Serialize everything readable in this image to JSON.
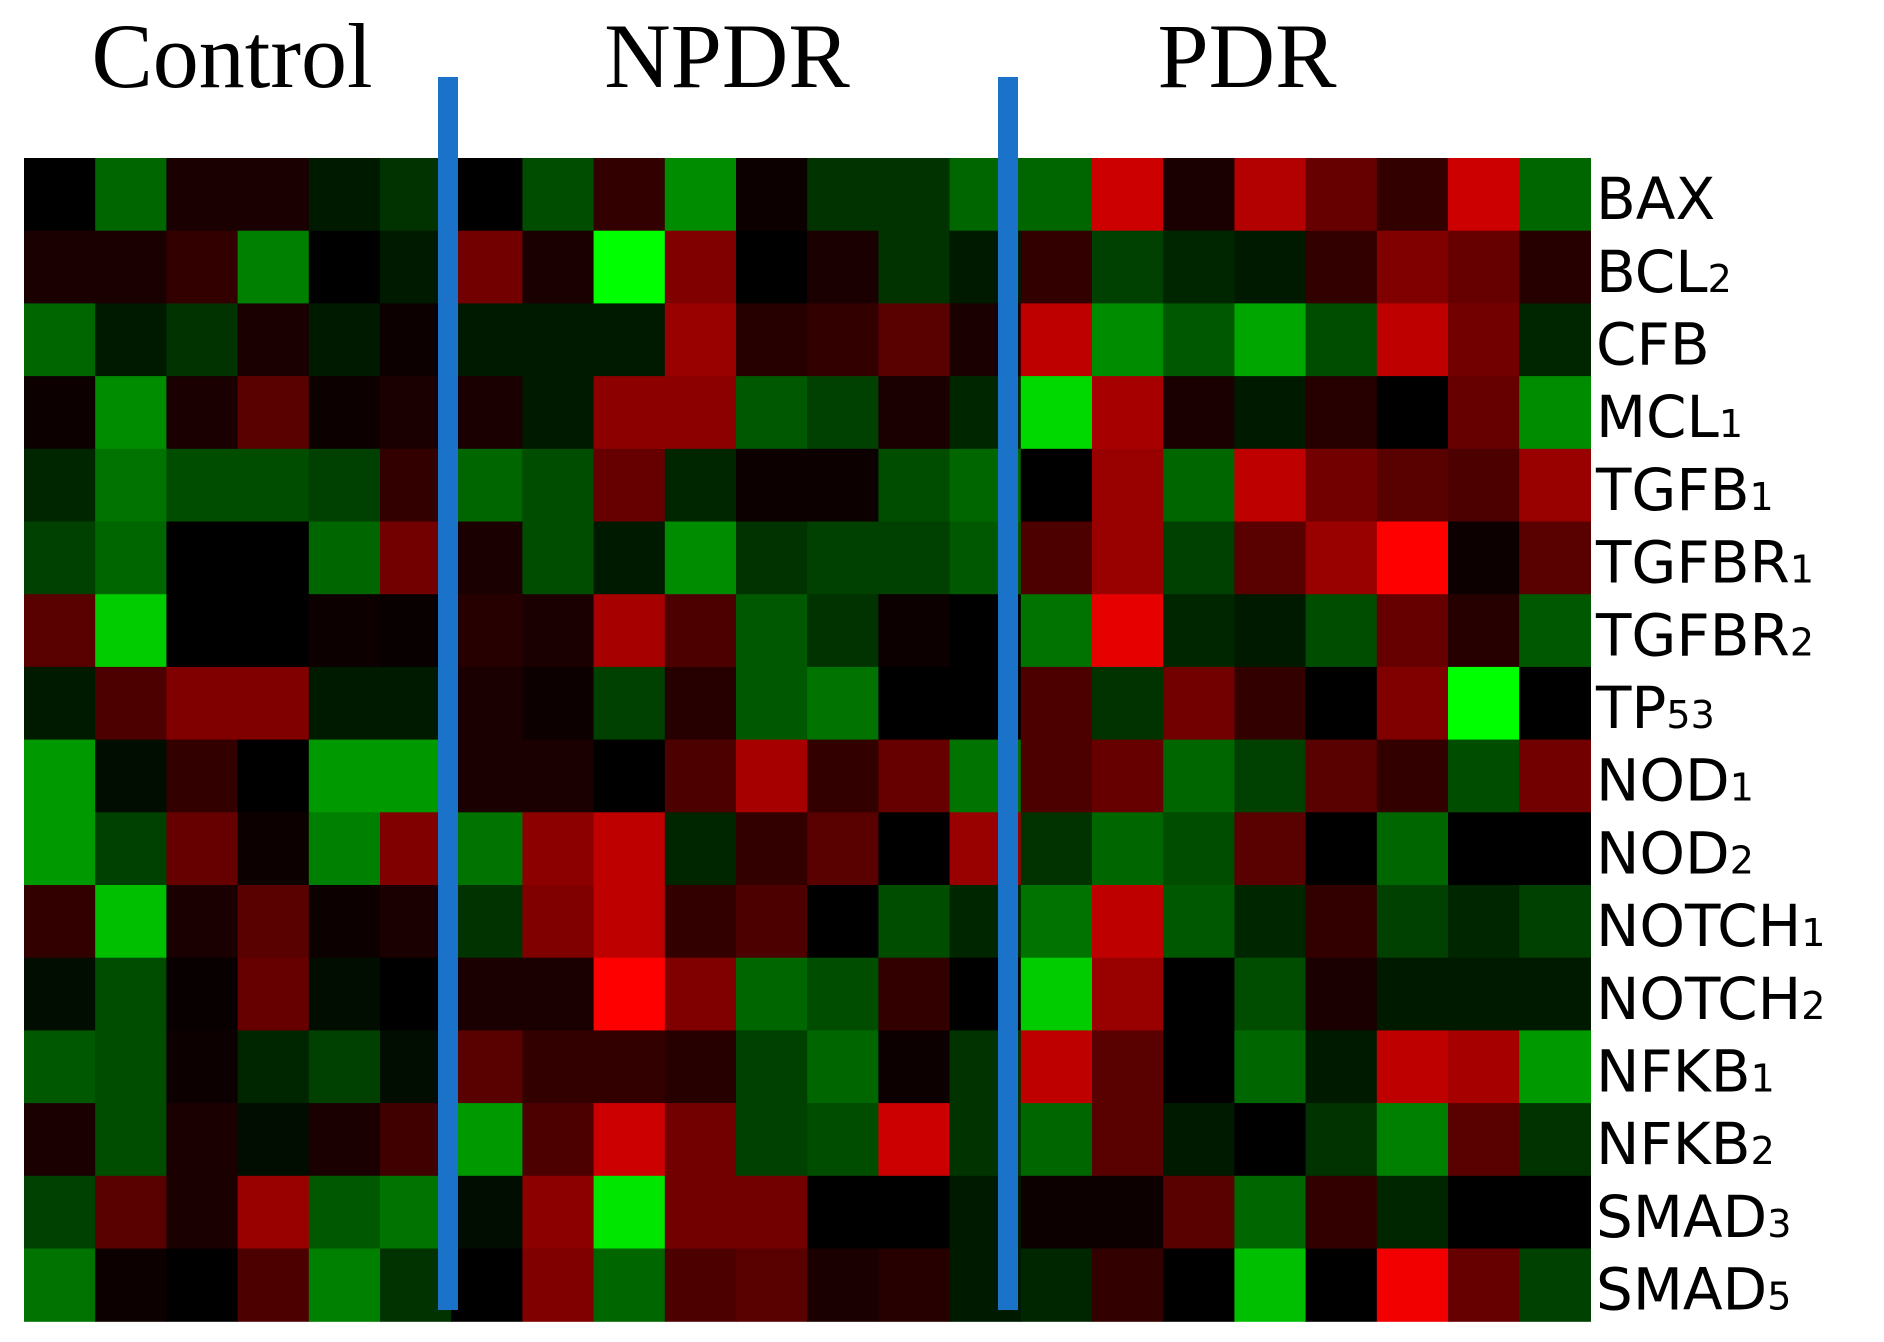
{
  "chart_data": {
    "type": "heatmap",
    "groups": [
      {
        "name": "Control",
        "columns": 6
      },
      {
        "name": "NPDR",
        "columns": 8
      },
      {
        "name": "PDR",
        "columns": 8
      }
    ],
    "rows": [
      {
        "name": "BAX",
        "base": "BAX",
        "sub": ""
      },
      {
        "name": "BCL2",
        "base": "BCL",
        "sub": "2"
      },
      {
        "name": "CFB",
        "base": "CFB",
        "sub": ""
      },
      {
        "name": "MCL1",
        "base": "MCL",
        "sub": "1"
      },
      {
        "name": "TGFB1",
        "base": "TGFB",
        "sub": "1"
      },
      {
        "name": "TGFBR1",
        "base": "TGFBR",
        "sub": "1"
      },
      {
        "name": "TGFBR2",
        "base": "TGFBR",
        "sub": "2"
      },
      {
        "name": "TP53",
        "base": "TP",
        "sub": "53"
      },
      {
        "name": "NOD1",
        "base": "NOD",
        "sub": "1"
      },
      {
        "name": "NOD2",
        "base": "NOD",
        "sub": "2"
      },
      {
        "name": "NOTCH1",
        "base": "NOTCH",
        "sub": "1"
      },
      {
        "name": "NOTCH2",
        "base": "NOTCH",
        "sub": "2"
      },
      {
        "name": "NFKB1",
        "base": "NFKB",
        "sub": "1"
      },
      {
        "name": "NFKB2",
        "base": "NFKB",
        "sub": "2"
      },
      {
        "name": "SMAD3",
        "base": "SMAD",
        "sub": "3"
      },
      {
        "name": "SMAD5",
        "base": "SMAD",
        "sub": "5"
      }
    ],
    "colorscale": {
      "low": "#00ff00",
      "mid": "#000000",
      "high": "#ff0000"
    },
    "separator_color": "#1a73c8",
    "values": [
      [
        0,
        -0.4,
        0.1,
        0.1,
        -0.1,
        -0.2,
        0,
        -0.3,
        0.2,
        -0.55,
        0.05,
        -0.2,
        -0.2,
        -0.4,
        -0.4,
        0.8,
        0.1,
        0.7,
        0.4,
        0.2,
        0.8,
        -0.4
      ],
      [
        0.1,
        0.1,
        0.2,
        -0.5,
        0,
        -0.1,
        0.45,
        0.1,
        -1.0,
        0.5,
        0,
        0.1,
        -0.2,
        -0.1,
        0.2,
        -0.25,
        -0.15,
        -0.1,
        0.2,
        0.5,
        0.4,
        0.15
      ],
      [
        -0.4,
        -0.1,
        -0.2,
        0.1,
        -0.1,
        0.05,
        -0.1,
        -0.1,
        -0.1,
        0.6,
        0.15,
        0.2,
        0.35,
        0.1,
        0.75,
        -0.55,
        -0.35,
        -0.65,
        -0.3,
        0.75,
        0.45,
        -0.15
      ],
      [
        0.05,
        -0.55,
        0.1,
        0.35,
        0.05,
        0.1,
        0.1,
        -0.1,
        0.55,
        0.55,
        -0.35,
        -0.25,
        0.1,
        -0.15,
        -0.85,
        0.65,
        0.1,
        -0.1,
        0.15,
        0,
        0.4,
        -0.55
      ],
      [
        -0.15,
        -0.45,
        -0.3,
        -0.3,
        -0.25,
        0.2,
        -0.4,
        -0.3,
        0.4,
        -0.15,
        0.05,
        0.05,
        -0.3,
        -0.4,
        0,
        0.6,
        -0.4,
        0.75,
        0.45,
        0.35,
        0.3,
        0.6
      ],
      [
        -0.25,
        -0.4,
        0,
        0,
        -0.4,
        0.45,
        0.1,
        -0.3,
        -0.1,
        -0.55,
        -0.2,
        -0.25,
        -0.25,
        -0.35,
        0.3,
        0.6,
        -0.25,
        0.35,
        0.6,
        1.0,
        0.05,
        0.35
      ],
      [
        0.35,
        -0.8,
        0,
        0,
        0.05,
        0.03,
        0.15,
        0.1,
        0.65,
        0.3,
        -0.35,
        -0.2,
        0.05,
        0,
        -0.45,
        0.9,
        -0.15,
        -0.1,
        -0.3,
        0.4,
        0.15,
        -0.35
      ],
      [
        -0.1,
        0.3,
        0.5,
        0.5,
        -0.1,
        -0.1,
        0.1,
        0.05,
        -0.25,
        0.15,
        -0.35,
        -0.45,
        0,
        0,
        0.3,
        -0.2,
        0.45,
        0.2,
        0,
        0.5,
        -1.0,
        0
      ],
      [
        -0.6,
        -0.05,
        0.2,
        0,
        -0.6,
        -0.6,
        0.1,
        0.1,
        0,
        0.3,
        0.65,
        0.2,
        0.4,
        -0.45,
        0.3,
        0.4,
        -0.4,
        -0.25,
        0.35,
        0.2,
        -0.3,
        0.45
      ],
      [
        -0.6,
        -0.25,
        0.4,
        0.05,
        -0.5,
        0.5,
        -0.45,
        0.55,
        0.75,
        -0.15,
        0.2,
        0.35,
        0,
        0.6,
        -0.2,
        -0.4,
        -0.3,
        0.35,
        0,
        -0.4,
        0,
        0
      ],
      [
        0.2,
        -0.75,
        0.1,
        0.35,
        0.05,
        0.1,
        -0.2,
        0.5,
        0.75,
        0.2,
        0.3,
        0,
        -0.3,
        -0.15,
        -0.45,
        0.75,
        -0.35,
        -0.15,
        0.2,
        -0.25,
        -0.15,
        -0.25
      ],
      [
        -0.05,
        -0.3,
        0.03,
        0.4,
        -0.05,
        0,
        0.1,
        0.1,
        1.0,
        0.5,
        -0.4,
        -0.3,
        0.2,
        0,
        -0.8,
        0.6,
        0,
        -0.3,
        0.1,
        -0.1,
        -0.1,
        -0.1
      ],
      [
        -0.35,
        -0.3,
        0.05,
        -0.15,
        -0.25,
        -0.05,
        0.35,
        0.2,
        0.2,
        0.15,
        -0.25,
        -0.4,
        0.05,
        -0.2,
        0.75,
        0.35,
        0,
        -0.4,
        -0.1,
        0.75,
        0.65,
        -0.6
      ],
      [
        0.1,
        -0.3,
        0.1,
        -0.05,
        0.1,
        0.25,
        -0.6,
        0.3,
        0.8,
        0.45,
        -0.25,
        -0.3,
        0.8,
        -0.2,
        -0.4,
        0.35,
        -0.1,
        0,
        -0.2,
        -0.5,
        0.35,
        -0.2
      ],
      [
        -0.25,
        0.35,
        0.1,
        0.6,
        -0.35,
        -0.45,
        -0.05,
        0.55,
        -0.9,
        0.45,
        0.45,
        0,
        0,
        -0.1,
        0.05,
        0.05,
        0.35,
        -0.4,
        0.2,
        -0.15,
        0,
        0
      ],
      [
        -0.45,
        0.05,
        0,
        0.3,
        -0.5,
        -0.2,
        0,
        0.5,
        -0.4,
        0.3,
        0.35,
        0.1,
        0.15,
        -0.1,
        -0.15,
        0.2,
        0,
        -0.75,
        0,
        0.95,
        0.4,
        -0.25
      ]
    ]
  }
}
